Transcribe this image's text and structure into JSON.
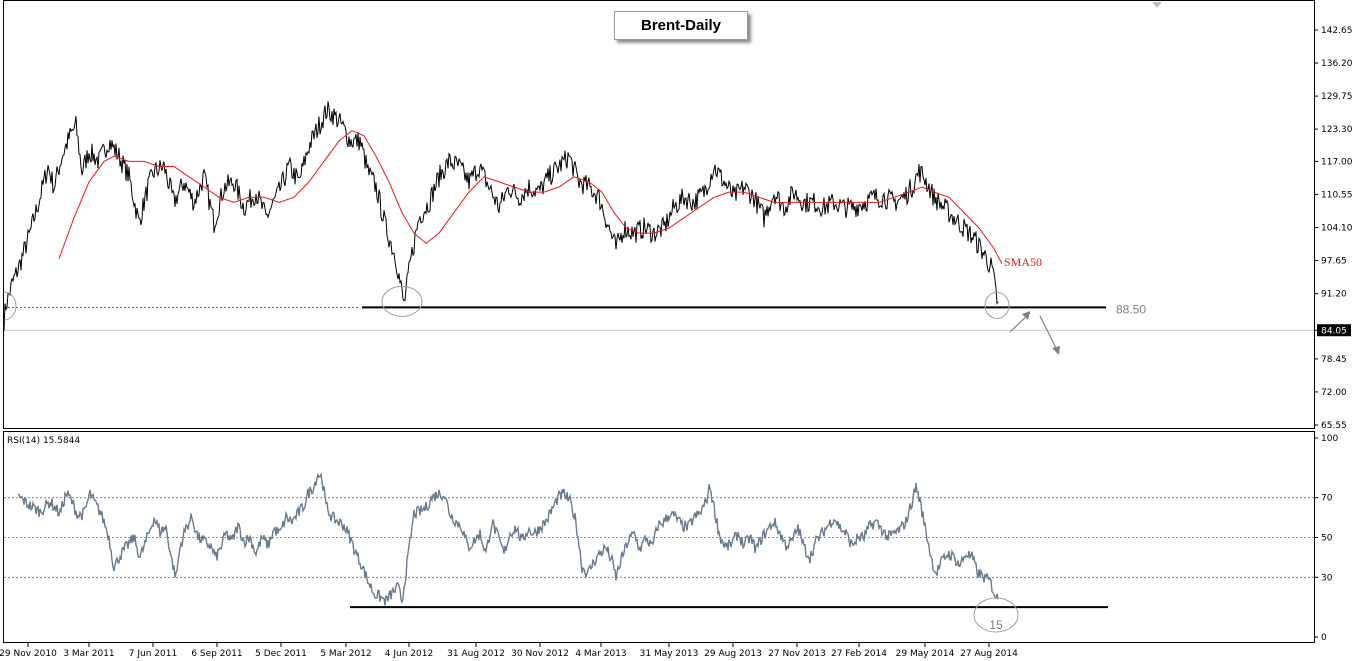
{
  "chart_data": [
    {
      "type": "line",
      "title": "Brent-Daily",
      "y_ticks": [
        "142.65",
        "136.20",
        "129.75",
        "123.30",
        "117.00",
        "110.55",
        "104.10",
        "97.65",
        "91.20",
        "84.05",
        "78.45",
        "72.00",
        "65.55"
      ],
      "ylim": [
        65.55,
        142.65
      ],
      "x_tick_labels": [
        "29 Nov 2010",
        "3 Mar 2011",
        "7 Jun 2011",
        "6 Sep 2011",
        "5 Dec 2011",
        "5 Mar 2012",
        "4 Jun 2012",
        "31 Aug 2012",
        "30 Nov 2012",
        "4 Mar 2013",
        "31 May 2013",
        "29 Aug 2013",
        "27 Nov 2013",
        "27 Feb 2014",
        "29 May 2014",
        "27 Aug 2014"
      ],
      "price_anchors": [
        [
          0,
          86
        ],
        [
          2,
          89
        ],
        [
          8,
          93
        ],
        [
          16,
          97
        ],
        [
          26,
          103
        ],
        [
          36,
          110
        ],
        [
          44,
          116
        ],
        [
          50,
          112
        ],
        [
          58,
          118
        ],
        [
          66,
          122
        ],
        [
          72,
          124
        ],
        [
          78,
          115
        ],
        [
          85,
          119
        ],
        [
          95,
          117
        ],
        [
          105,
          121
        ],
        [
          115,
          118
        ],
        [
          125,
          114
        ],
        [
          135,
          105
        ],
        [
          144,
          112
        ],
        [
          150,
          115
        ],
        [
          160,
          116
        ],
        [
          170,
          109
        ],
        [
          180,
          113
        ],
        [
          190,
          109
        ],
        [
          200,
          114
        ],
        [
          210,
          105
        ],
        [
          220,
          112
        ],
        [
          230,
          113
        ],
        [
          240,
          108
        ],
        [
          252,
          111
        ],
        [
          262,
          106
        ],
        [
          275,
          111
        ],
        [
          285,
          116
        ],
        [
          295,
          113
        ],
        [
          305,
          120
        ],
        [
          315,
          124
        ],
        [
          323,
          127
        ],
        [
          330,
          126
        ],
        [
          338,
          124
        ],
        [
          346,
          121
        ],
        [
          356,
          121
        ],
        [
          364,
          115
        ],
        [
          372,
          112
        ],
        [
          382,
          104
        ],
        [
          392,
          98
        ],
        [
          400,
          89
        ],
        [
          407,
          98
        ],
        [
          415,
          106
        ],
        [
          425,
          109
        ],
        [
          435,
          114
        ],
        [
          445,
          117
        ],
        [
          455,
          116
        ],
        [
          465,
          113
        ],
        [
          475,
          116
        ],
        [
          485,
          112
        ],
        [
          495,
          108
        ],
        [
          505,
          112
        ],
        [
          515,
          110
        ],
        [
          525,
          112
        ],
        [
          535,
          111
        ],
        [
          545,
          114
        ],
        [
          555,
          116
        ],
        [
          565,
          118
        ],
        [
          575,
          113
        ],
        [
          585,
          112
        ],
        [
          595,
          110
        ],
        [
          605,
          104
        ],
        [
          612,
          100
        ],
        [
          620,
          104
        ],
        [
          630,
          103
        ],
        [
          640,
          104
        ],
        [
          650,
          103
        ],
        [
          660,
          104
        ],
        [
          670,
          108
        ],
        [
          680,
          110
        ],
        [
          690,
          109
        ],
        [
          700,
          111
        ],
        [
          710,
          116
        ],
        [
          720,
          113
        ],
        [
          730,
          110
        ],
        [
          740,
          112
        ],
        [
          750,
          110
        ],
        [
          760,
          106
        ],
        [
          770,
          111
        ],
        [
          780,
          108
        ],
        [
          790,
          111
        ],
        [
          800,
          109
        ],
        [
          810,
          109
        ],
        [
          820,
          108
        ],
        [
          830,
          109
        ],
        [
          840,
          108
        ],
        [
          850,
          108
        ],
        [
          860,
          109
        ],
        [
          870,
          110
        ],
        [
          880,
          110
        ],
        [
          890,
          109
        ],
        [
          900,
          110
        ],
        [
          908,
          112
        ],
        [
          915,
          115
        ],
        [
          920,
          114
        ],
        [
          930,
          110
        ],
        [
          940,
          108
        ],
        [
          950,
          106
        ],
        [
          960,
          104
        ],
        [
          970,
          102
        ],
        [
          980,
          99
        ],
        [
          988,
          96
        ],
        [
          993,
          90
        ],
        [
          998,
          84
        ]
      ],
      "sma50_anchors": [
        [
          55,
          98
        ],
        [
          70,
          106
        ],
        [
          85,
          113
        ],
        [
          100,
          117
        ],
        [
          110,
          118
        ],
        [
          125,
          117
        ],
        [
          140,
          117
        ],
        [
          155,
          116
        ],
        [
          170,
          116
        ],
        [
          185,
          114
        ],
        [
          200,
          112
        ],
        [
          215,
          110
        ],
        [
          230,
          109
        ],
        [
          245,
          110
        ],
        [
          260,
          110
        ],
        [
          275,
          109
        ],
        [
          290,
          110
        ],
        [
          305,
          113
        ],
        [
          320,
          117
        ],
        [
          335,
          121
        ],
        [
          348,
          123
        ],
        [
          360,
          122
        ],
        [
          372,
          118
        ],
        [
          385,
          113
        ],
        [
          398,
          107
        ],
        [
          410,
          103
        ],
        [
          422,
          101
        ],
        [
          435,
          103
        ],
        [
          450,
          107
        ],
        [
          465,
          111
        ],
        [
          480,
          114
        ],
        [
          495,
          113
        ],
        [
          510,
          112
        ],
        [
          525,
          111
        ],
        [
          540,
          111
        ],
        [
          555,
          112
        ],
        [
          570,
          114
        ],
        [
          585,
          113
        ],
        [
          598,
          111
        ],
        [
          610,
          107
        ],
        [
          622,
          104
        ],
        [
          635,
          103
        ],
        [
          650,
          103
        ],
        [
          665,
          104
        ],
        [
          680,
          106
        ],
        [
          695,
          108
        ],
        [
          710,
          110
        ],
        [
          725,
          111
        ],
        [
          740,
          111
        ],
        [
          755,
          110
        ],
        [
          770,
          109
        ],
        [
          785,
          109
        ],
        [
          800,
          109
        ],
        [
          815,
          109
        ],
        [
          830,
          109
        ],
        [
          845,
          109
        ],
        [
          860,
          109
        ],
        [
          875,
          109
        ],
        [
          890,
          110
        ],
        [
          905,
          111
        ],
        [
          918,
          112
        ],
        [
          930,
          111
        ],
        [
          945,
          110
        ],
        [
          960,
          107
        ],
        [
          975,
          104
        ],
        [
          990,
          100
        ],
        [
          998,
          97
        ]
      ],
      "rsi_anchors": [
        [
          0,
          70
        ],
        [
          8,
          72
        ],
        [
          16,
          70
        ],
        [
          26,
          66
        ],
        [
          36,
          63
        ],
        [
          46,
          68
        ],
        [
          56,
          62
        ],
        [
          62,
          72
        ],
        [
          66,
          70
        ],
        [
          74,
          61
        ],
        [
          80,
          62
        ],
        [
          86,
          72
        ],
        [
          90,
          68
        ],
        [
          96,
          63
        ],
        [
          100,
          58
        ],
        [
          105,
          50
        ],
        [
          110,
          35
        ],
        [
          115,
          40
        ],
        [
          122,
          45
        ],
        [
          130,
          50
        ],
        [
          136,
          40
        ],
        [
          142,
          48
        ],
        [
          150,
          60
        ],
        [
          156,
          53
        ],
        [
          162,
          55
        ],
        [
          168,
          38
        ],
        [
          172,
          30
        ],
        [
          176,
          45
        ],
        [
          182,
          55
        ],
        [
          188,
          60
        ],
        [
          194,
          50
        ],
        [
          200,
          48
        ],
        [
          206,
          46
        ],
        [
          212,
          40
        ],
        [
          216,
          44
        ],
        [
          222,
          52
        ],
        [
          228,
          48
        ],
        [
          234,
          56
        ],
        [
          240,
          48
        ],
        [
          246,
          50
        ],
        [
          252,
          42
        ],
        [
          258,
          50
        ],
        [
          264,
          46
        ],
        [
          270,
          54
        ],
        [
          276,
          52
        ],
        [
          282,
          60
        ],
        [
          288,
          58
        ],
        [
          294,
          62
        ],
        [
          300,
          66
        ],
        [
          304,
          72
        ],
        [
          310,
          76
        ],
        [
          314,
          82
        ],
        [
          318,
          80
        ],
        [
          322,
          66
        ],
        [
          328,
          60
        ],
        [
          334,
          58
        ],
        [
          340,
          56
        ],
        [
          346,
          50
        ],
        [
          352,
          42
        ],
        [
          358,
          36
        ],
        [
          364,
          28
        ],
        [
          370,
          22
        ],
        [
          376,
          20
        ],
        [
          382,
          18
        ],
        [
          388,
          22
        ],
        [
          394,
          25
        ],
        [
          398,
          18
        ],
        [
          404,
          40
        ],
        [
          410,
          62
        ],
        [
          416,
          63
        ],
        [
          422,
          65
        ],
        [
          428,
          70
        ],
        [
          434,
          72
        ],
        [
          440,
          72
        ],
        [
          446,
          62
        ],
        [
          452,
          58
        ],
        [
          458,
          55
        ],
        [
          464,
          45
        ],
        [
          470,
          48
        ],
        [
          476,
          52
        ],
        [
          482,
          42
        ],
        [
          488,
          58
        ],
        [
          494,
          50
        ],
        [
          500,
          42
        ],
        [
          506,
          52
        ],
        [
          512,
          55
        ],
        [
          518,
          48
        ],
        [
          524,
          54
        ],
        [
          530,
          52
        ],
        [
          536,
          55
        ],
        [
          542,
          58
        ],
        [
          548,
          64
        ],
        [
          554,
          70
        ],
        [
          560,
          72
        ],
        [
          566,
          68
        ],
        [
          572,
          58
        ],
        [
          578,
          35
        ],
        [
          584,
          32
        ],
        [
          590,
          38
        ],
        [
          596,
          42
        ],
        [
          602,
          45
        ],
        [
          608,
          38
        ],
        [
          612,
          30
        ],
        [
          618,
          40
        ],
        [
          624,
          48
        ],
        [
          630,
          52
        ],
        [
          636,
          44
        ],
        [
          642,
          50
        ],
        [
          648,
          45
        ],
        [
          654,
          56
        ],
        [
          660,
          58
        ],
        [
          666,
          62
        ],
        [
          672,
          60
        ],
        [
          678,
          56
        ],
        [
          684,
          55
        ],
        [
          690,
          60
        ],
        [
          696,
          62
        ],
        [
          702,
          68
        ],
        [
          706,
          76
        ],
        [
          710,
          65
        ],
        [
          716,
          50
        ],
        [
          722,
          45
        ],
        [
          728,
          47
        ],
        [
          734,
          52
        ],
        [
          740,
          46
        ],
        [
          746,
          50
        ],
        [
          752,
          44
        ],
        [
          758,
          50
        ],
        [
          764,
          54
        ],
        [
          770,
          58
        ],
        [
          776,
          52
        ],
        [
          782,
          46
        ],
        [
          788,
          48
        ],
        [
          794,
          55
        ],
        [
          800,
          45
        ],
        [
          806,
          40
        ],
        [
          812,
          48
        ],
        [
          818,
          52
        ],
        [
          824,
          56
        ],
        [
          830,
          60
        ],
        [
          836,
          55
        ],
        [
          842,
          52
        ],
        [
          848,
          46
        ],
        [
          854,
          50
        ],
        [
          860,
          50
        ],
        [
          866,
          56
        ],
        [
          872,
          58
        ],
        [
          878,
          54
        ],
        [
          884,
          50
        ],
        [
          890,
          52
        ],
        [
          896,
          54
        ],
        [
          902,
          58
        ],
        [
          908,
          68
        ],
        [
          912,
          76
        ],
        [
          916,
          68
        ],
        [
          920,
          58
        ],
        [
          924,
          48
        ],
        [
          928,
          38
        ],
        [
          932,
          32
        ],
        [
          938,
          38
        ],
        [
          944,
          42
        ],
        [
          950,
          40
        ],
        [
          956,
          36
        ],
        [
          962,
          42
        ],
        [
          968,
          40
        ],
        [
          974,
          32
        ],
        [
          980,
          30
        ],
        [
          986,
          28
        ],
        [
          992,
          20
        ],
        [
          996,
          18
        ],
        [
          998,
          16
        ]
      ],
      "series": [
        {
          "name": "SMA50",
          "color": "#e8191c"
        },
        {
          "name": "RSI(14) 15.5844",
          "color": "#6b7a8c"
        }
      ],
      "price_color": "#000000",
      "current_price": "84.05",
      "support_level": 88.5,
      "support_label": "88.50",
      "rsi_label": "RSI(14) 15.5844",
      "rsi_ticks": [
        "100",
        "70",
        "50",
        "30",
        "0"
      ],
      "rsi_levels": [
        30,
        50,
        70
      ],
      "rsi_support": 15,
      "rsi_support_label": "15",
      "sma_label": "SMA50"
    }
  ]
}
